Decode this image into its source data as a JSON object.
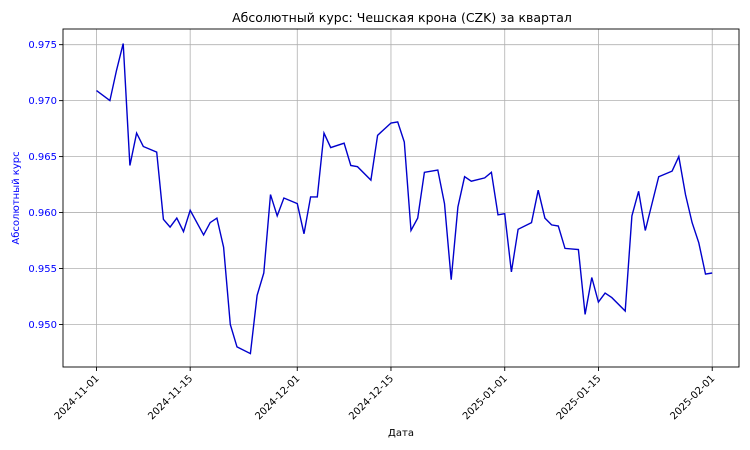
{
  "chart_data": {
    "type": "line",
    "title": "Абсолютный курс: Чешская крона (CZK) за квартал",
    "xlabel": "Дата",
    "ylabel": "Абсолютный курс",
    "x_ticks": [
      "2024-11-01",
      "2024-11-15",
      "2024-12-01",
      "2024-12-15",
      "2025-01-01",
      "2025-01-15",
      "2025-02-01"
    ],
    "y_ticks": [
      "0.950",
      "0.955",
      "0.960",
      "0.965",
      "0.970",
      "0.975"
    ],
    "xlim": [
      "2024-10-27",
      "2025-02-05"
    ],
    "ylim": [
      0.9462,
      0.9764
    ],
    "grid": true,
    "legend": "none",
    "colors": {
      "line": "#0000cc",
      "ytick": "#0000ff",
      "grid": "#b0b0b0"
    },
    "series": [
      {
        "x": [
          "2024-11-01",
          "2024-11-03",
          "2024-11-04",
          "2024-11-05",
          "2024-11-06",
          "2024-11-07",
          "2024-11-08",
          "2024-11-10",
          "2024-11-11",
          "2024-11-12",
          "2024-11-13",
          "2024-11-14",
          "2024-11-15",
          "2024-11-17",
          "2024-11-18",
          "2024-11-19",
          "2024-11-20",
          "2024-11-21",
          "2024-11-22",
          "2024-11-24",
          "2024-11-25",
          "2024-11-26",
          "2024-11-27",
          "2024-11-28",
          "2024-11-29",
          "2024-12-01",
          "2024-12-02",
          "2024-12-03",
          "2024-12-04",
          "2024-12-05",
          "2024-12-06",
          "2024-12-08",
          "2024-12-09",
          "2024-12-10",
          "2024-12-12",
          "2024-12-13",
          "2024-12-15",
          "2024-12-16",
          "2024-12-17",
          "2024-12-18",
          "2024-12-19",
          "2024-12-20",
          "2024-12-22",
          "2024-12-23",
          "2024-12-24",
          "2024-12-25",
          "2024-12-26",
          "2024-12-27",
          "2024-12-29",
          "2024-12-30",
          "2024-12-31",
          "2025-01-01",
          "2025-01-02",
          "2025-01-03",
          "2025-01-05",
          "2025-01-06",
          "2025-01-07",
          "2025-01-08",
          "2025-01-09",
          "2025-01-10",
          "2025-01-12",
          "2025-01-13",
          "2025-01-14",
          "2025-01-15",
          "2025-01-16",
          "2025-01-17",
          "2025-01-19",
          "2025-01-20",
          "2025-01-21",
          "2025-01-22",
          "2025-01-24",
          "2025-01-26",
          "2025-01-27",
          "2025-01-28",
          "2025-01-29",
          "2025-01-30",
          "2025-01-31",
          "2025-02-01"
        ],
        "y": [
          0.9709,
          0.97,
          0.9727,
          0.9751,
          0.9642,
          0.9671,
          0.9659,
          0.9654,
          0.9594,
          0.9587,
          0.9595,
          0.9583,
          0.9602,
          0.958,
          0.9591,
          0.9595,
          0.9569,
          0.95,
          0.948,
          0.9474,
          0.9526,
          0.9546,
          0.9616,
          0.9597,
          0.9613,
          0.9608,
          0.9581,
          0.9614,
          0.9614,
          0.9671,
          0.9658,
          0.9662,
          0.9642,
          0.9641,
          0.9629,
          0.9669,
          0.968,
          0.9681,
          0.9663,
          0.9584,
          0.9595,
          0.9636,
          0.9638,
          0.9608,
          0.954,
          0.9605,
          0.9632,
          0.9628,
          0.9631,
          0.9636,
          0.9598,
          0.9599,
          0.9547,
          0.9585,
          0.9591,
          0.962,
          0.9595,
          0.9589,
          0.9588,
          0.9568,
          0.9567,
          0.9509,
          0.9542,
          0.952,
          0.9528,
          0.9524,
          0.9512,
          0.9597,
          0.9619,
          0.9584,
          0.9632,
          0.9637,
          0.965,
          0.9616,
          0.9591,
          0.9573,
          0.9545,
          0.9546
        ]
      }
    ]
  }
}
